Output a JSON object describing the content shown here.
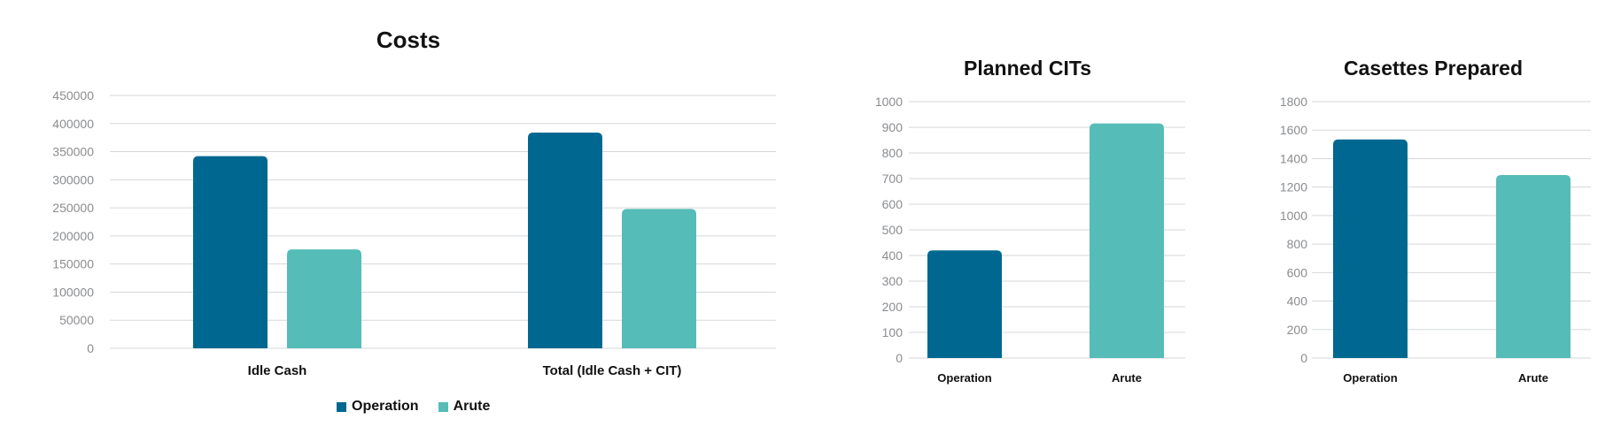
{
  "colors": {
    "operation": "#006890",
    "arute": "#55BCB8",
    "grid": "#D5D7DA",
    "tick_text": "#8A8C8F",
    "text": "#111111"
  },
  "legend": {
    "items": [
      {
        "label": "Operation"
      },
      {
        "label": "Arute"
      }
    ],
    "position": "bottom"
  },
  "chart_data": [
    {
      "type": "bar",
      "title": "Costs",
      "categories": [
        "Idle Cash",
        "Total (Idle Cash + CIT)"
      ],
      "series": [
        {
          "name": "Operation",
          "values": [
            342000,
            384000
          ]
        },
        {
          "name": "Arute",
          "values": [
            176000,
            248000
          ]
        }
      ],
      "xlabel": "",
      "ylabel": "",
      "ylim": [
        0,
        450000
      ],
      "yticks": [
        0,
        50000,
        100000,
        150000,
        200000,
        250000,
        300000,
        350000,
        400000,
        450000
      ],
      "grid": true
    },
    {
      "type": "bar",
      "title": "Planned CITs",
      "categories": [
        "Operation",
        "Arute"
      ],
      "values": [
        420,
        915
      ],
      "xlabel": "",
      "ylabel": "",
      "ylim": [
        0,
        1000
      ],
      "yticks": [
        0,
        100,
        200,
        300,
        400,
        500,
        600,
        700,
        800,
        900,
        1000
      ],
      "grid": true
    },
    {
      "type": "bar",
      "title": "Casettes Prepared",
      "categories": [
        "Operation",
        "Arute"
      ],
      "values": [
        1535,
        1285
      ],
      "xlabel": "",
      "ylabel": "",
      "ylim": [
        0,
        1800
      ],
      "yticks": [
        0,
        200,
        400,
        600,
        800,
        1000,
        1200,
        1400,
        1600,
        1800
      ],
      "grid": true
    }
  ]
}
